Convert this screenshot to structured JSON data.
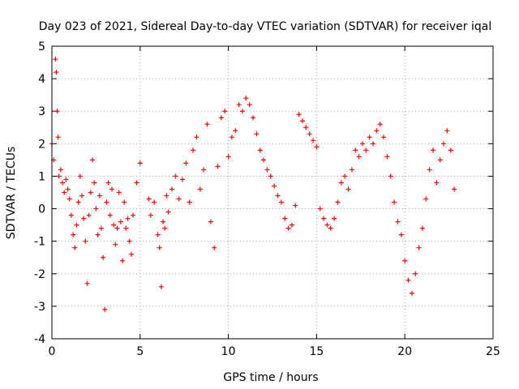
{
  "chart_data": {
    "type": "scatter",
    "title": "Day 023 of 2021, Sidereal Day-to-day VTEC variation (SDTVAR) for receiver iqal",
    "xlabel": "GPS time / hours",
    "ylabel": "SDTVAR / TECUs",
    "xlim": [
      0,
      25
    ],
    "ylim": [
      -4,
      5
    ],
    "xticks": [
      0,
      5,
      10,
      15,
      20,
      25
    ],
    "yticks": [
      -4,
      -3,
      -2,
      -1,
      0,
      1,
      2,
      3,
      4,
      5
    ],
    "grid": true,
    "marker": "+",
    "color": "#ff0000",
    "series": [
      {
        "name": "SDTVAR",
        "x": [
          0.0,
          0.1,
          0.2,
          0.25,
          0.3,
          0.35,
          0.4,
          0.5,
          0.6,
          0.7,
          0.8,
          0.9,
          1.0,
          1.1,
          1.2,
          1.3,
          1.4,
          1.5,
          1.6,
          1.7,
          1.8,
          1.9,
          2.0,
          2.1,
          2.2,
          2.3,
          2.4,
          2.5,
          2.6,
          2.7,
          2.8,
          2.9,
          3.0,
          3.1,
          3.2,
          3.3,
          3.4,
          3.5,
          3.6,
          3.7,
          3.8,
          3.9,
          4.0,
          4.1,
          4.2,
          4.3,
          4.4,
          4.5,
          4.6,
          4.8,
          5.0,
          5.5,
          5.6,
          5.8,
          6.0,
          6.1,
          6.2,
          6.3,
          6.4,
          6.5,
          6.6,
          6.8,
          7.0,
          7.2,
          7.4,
          7.6,
          7.8,
          8.0,
          8.2,
          8.4,
          8.6,
          8.8,
          9.0,
          9.2,
          9.4,
          9.6,
          9.8,
          10.0,
          10.2,
          10.4,
          10.6,
          10.8,
          11.0,
          11.2,
          11.4,
          11.6,
          11.8,
          12.0,
          12.2,
          12.4,
          12.6,
          12.8,
          13.0,
          13.2,
          13.4,
          13.6,
          13.8,
          14.0,
          14.2,
          14.4,
          14.6,
          14.8,
          15.0,
          15.2,
          15.4,
          15.6,
          15.8,
          16.0,
          16.2,
          16.4,
          16.6,
          16.8,
          17.0,
          17.2,
          17.4,
          17.6,
          17.8,
          18.0,
          18.2,
          18.4,
          18.6,
          18.8,
          19.0,
          19.2,
          19.4,
          19.6,
          19.8,
          20.0,
          20.2,
          20.4,
          20.6,
          20.8,
          21.0,
          21.2,
          21.4,
          21.6,
          21.8,
          22.0,
          22.2,
          22.4,
          22.6,
          22.8
        ],
        "y": [
          2.0,
          1.5,
          4.6,
          4.2,
          3.0,
          2.2,
          1.0,
          1.2,
          0.8,
          0.5,
          0.9,
          0.6,
          0.3,
          -0.2,
          -0.8,
          -1.2,
          -0.5,
          0.2,
          1.0,
          0.4,
          -0.3,
          -1.0,
          -2.3,
          -0.2,
          0.5,
          1.5,
          0.8,
          0.0,
          -0.8,
          0.4,
          -0.6,
          -1.5,
          -3.1,
          0.2,
          0.8,
          -0.2,
          0.6,
          -0.5,
          -1.1,
          -0.6,
          0.5,
          -0.4,
          -1.6,
          0.2,
          -0.6,
          -0.3,
          -1.0,
          -1.4,
          -0.2,
          0.8,
          1.4,
          0.3,
          -0.2,
          0.2,
          -0.8,
          -1.2,
          -2.4,
          -0.4,
          -0.6,
          0.4,
          -0.1,
          0.6,
          1.0,
          0.3,
          0.9,
          1.4,
          0.2,
          1.8,
          2.2,
          0.6,
          1.2,
          2.6,
          -0.4,
          -1.2,
          1.3,
          2.8,
          3.0,
          1.6,
          2.2,
          2.4,
          3.2,
          3.0,
          3.4,
          3.2,
          2.8,
          2.3,
          1.8,
          1.5,
          1.2,
          1.0,
          0.7,
          0.4,
          0.2,
          -0.3,
          -0.6,
          -0.5,
          0.1,
          2.9,
          2.7,
          2.5,
          2.3,
          2.1,
          1.9,
          0.0,
          -0.3,
          -0.5,
          -0.6,
          -0.3,
          0.2,
          0.8,
          1.0,
          0.6,
          1.2,
          1.8,
          1.6,
          2.0,
          1.8,
          2.2,
          2.0,
          2.4,
          2.6,
          2.2,
          1.6,
          1.0,
          0.2,
          -0.4,
          -0.8,
          -1.6,
          -2.2,
          -2.6,
          -2.0,
          -1.2,
          -0.6,
          0.3,
          1.2,
          1.8,
          0.8,
          1.5,
          2.0,
          2.4,
          1.8,
          0.6
        ]
      }
    ]
  }
}
